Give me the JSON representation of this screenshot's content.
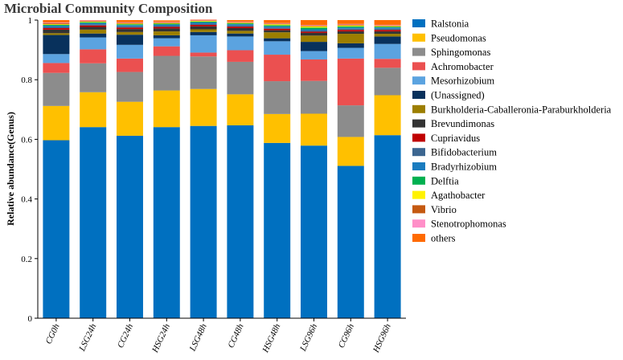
{
  "chart_data": {
    "type": "bar",
    "stacked": true,
    "title": "Microbial Community Composition",
    "xlabel": "",
    "ylabel": "Relative abundance(Genus)",
    "ylim": [
      0,
      1
    ],
    "yticks": [
      "0",
      "0.2",
      "0.4",
      "0.6",
      "0.8",
      "1"
    ],
    "grid": false,
    "legend_position": "right",
    "categories": [
      "CG0h",
      "LSG24h",
      "CG24h",
      "HSG24h",
      "LSG48h",
      "CG48h",
      "HSG48h",
      "LSG96h",
      "CG96h",
      "HSG96h"
    ],
    "series": [
      {
        "name": "Ralstonia",
        "color": "#0070C0",
        "values": [
          0.597,
          0.641,
          0.612,
          0.641,
          0.645,
          0.647,
          0.588,
          0.579,
          0.511,
          0.614
        ]
      },
      {
        "name": "Pseudomonas",
        "color": "#FFC000",
        "values": [
          0.115,
          0.117,
          0.114,
          0.123,
          0.124,
          0.104,
          0.097,
          0.107,
          0.097,
          0.134
        ]
      },
      {
        "name": "Sphingomonas",
        "color": "#8C8C8C",
        "values": [
          0.111,
          0.097,
          0.1,
          0.116,
          0.109,
          0.109,
          0.11,
          0.11,
          0.106,
          0.092
        ]
      },
      {
        "name": "Achromobacter",
        "color": "#EB5050",
        "values": [
          0.033,
          0.047,
          0.045,
          0.032,
          0.013,
          0.039,
          0.089,
          0.072,
          0.157,
          0.03
        ]
      },
      {
        "name": "Mesorhizobium",
        "color": "#5BA3E0",
        "values": [
          0.03,
          0.04,
          0.046,
          0.027,
          0.058,
          0.046,
          0.045,
          0.028,
          0.036,
          0.05
        ]
      },
      {
        "name": "(Unassigned)",
        "color": "#08315C",
        "values": [
          0.064,
          0.013,
          0.034,
          0.01,
          0.011,
          0.01,
          0.01,
          0.031,
          0.015,
          0.025
        ]
      },
      {
        "name": "Burkholderia-Caballeronia-Paraburkholderia",
        "color": "#9C7E00",
        "values": [
          0.006,
          0.013,
          0.009,
          0.013,
          0.009,
          0.009,
          0.02,
          0.021,
          0.032,
          0.009
        ]
      },
      {
        "name": "Brevundimonas",
        "color": "#333333",
        "values": [
          0.012,
          0.009,
          0.01,
          0.01,
          0.01,
          0.009,
          0.007,
          0.009,
          0.008,
          0.008
        ]
      },
      {
        "name": "Cupriavidus",
        "color": "#C00000",
        "values": [
          0.005,
          0.005,
          0.005,
          0.005,
          0.005,
          0.005,
          0.005,
          0.004,
          0.005,
          0.005
        ]
      },
      {
        "name": "Bifidobacterium",
        "color": "#3C6690",
        "values": [
          0.004,
          0.004,
          0.004,
          0.004,
          0.004,
          0.004,
          0.004,
          0.004,
          0.004,
          0.004
        ]
      },
      {
        "name": "Bradyrhizobium",
        "color": "#1A7CBF",
        "values": [
          0.004,
          0.004,
          0.004,
          0.004,
          0.004,
          0.004,
          0.004,
          0.004,
          0.004,
          0.004
        ]
      },
      {
        "name": "Delftia",
        "color": "#00B050",
        "values": [
          0.003,
          0.003,
          0.003,
          0.003,
          0.003,
          0.003,
          0.004,
          0.006,
          0.004,
          0.003
        ]
      },
      {
        "name": "Agathobacter",
        "color": "#FFF200",
        "values": [
          0.002,
          0.002,
          0.002,
          0.002,
          0.002,
          0.002,
          0.003,
          0.004,
          0.003,
          0.002
        ]
      },
      {
        "name": "Vibrio",
        "color": "#C55A11",
        "values": [
          0.004,
          0.002,
          0.003,
          0.002,
          0.002,
          0.002,
          0.002,
          0.002,
          0.003,
          0.002
        ]
      },
      {
        "name": "Stenotrophomonas",
        "color": "#FF8FC8",
        "values": [
          0.002,
          0.002,
          0.002,
          0.002,
          0.002,
          0.002,
          0.002,
          0.002,
          0.002,
          0.002
        ]
      },
      {
        "name": "others",
        "color": "#FF6A00",
        "values": [
          0.008,
          0.001,
          0.007,
          0.005,
          0.001,
          0.005,
          0.01,
          0.017,
          0.013,
          0.016
        ]
      }
    ]
  }
}
